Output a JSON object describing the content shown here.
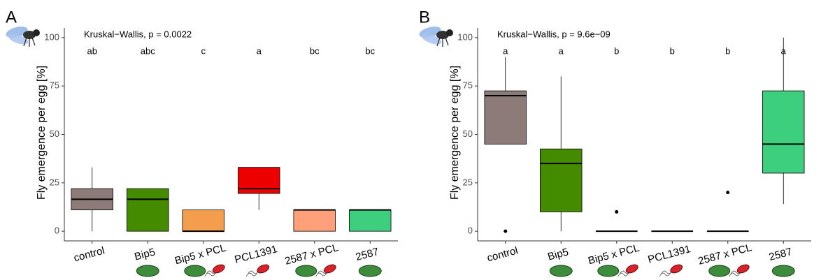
{
  "chart_data": [
    {
      "type": "box",
      "panel": "A",
      "ylabel": "Fly emergence per egg [%]",
      "annotation": "Kruskal−Wallis, p = 0.0022",
      "categories": [
        "control",
        "Bip5",
        "Bip5 x PCL",
        "PCL1391",
        "2587 x PCL",
        "2587"
      ],
      "group_letters": [
        "ab",
        "abc",
        "c",
        "a",
        "bc",
        "bc"
      ],
      "colors": [
        "#8c7b79",
        "#458b00",
        "#f29e4c",
        "#ee0000",
        "#ffa07a",
        "#3ecf7e"
      ],
      "boxes": [
        {
          "whisker_low": 0,
          "q1": 11,
          "median": 16.5,
          "q3": 22,
          "whisker_high": 33,
          "outliers": []
        },
        {
          "whisker_low": 0,
          "q1": 0,
          "median": 16.5,
          "q3": 22,
          "whisker_high": 22,
          "outliers": []
        },
        {
          "whisker_low": 0,
          "q1": 0,
          "median": 0,
          "q3": 11,
          "whisker_high": 11,
          "outliers": []
        },
        {
          "whisker_low": 11,
          "q1": 19.5,
          "median": 22,
          "q3": 33,
          "whisker_high": 33,
          "outliers": []
        },
        {
          "whisker_low": 0,
          "q1": 0,
          "median": 11,
          "q3": 11,
          "whisker_high": 11,
          "outliers": []
        },
        {
          "whisker_low": 0,
          "q1": 0,
          "median": 11,
          "q3": 11,
          "whisker_high": 11,
          "outliers": []
        }
      ],
      "ylim": [
        -5,
        105
      ],
      "yticks": [
        0,
        25,
        50,
        75,
        100
      ]
    },
    {
      "type": "box",
      "panel": "B",
      "ylabel": "Fly emergence per egg [%]",
      "annotation": "Kruskal−Wallis, p = 9.6e−09",
      "categories": [
        "control",
        "Bip5",
        "Bip5 x PCL",
        "PCL1391",
        "2587 x PCL",
        "2587"
      ],
      "group_letters": [
        "a",
        "a",
        "b",
        "b",
        "b",
        "a"
      ],
      "colors": [
        "#8c7b79",
        "#458b00",
        "#f29e4c",
        "#ee0000",
        "#ffa07a",
        "#3ecf7e"
      ],
      "boxes": [
        {
          "whisker_low": 45,
          "q1": 45,
          "median": 70,
          "q3": 72.5,
          "whisker_high": 90,
          "outliers": [
            0
          ]
        },
        {
          "whisker_low": 0,
          "q1": 10,
          "median": 35,
          "q3": 42.5,
          "whisker_high": 80,
          "outliers": []
        },
        {
          "whisker_low": 0,
          "q1": 0,
          "median": 0,
          "q3": 0,
          "whisker_high": 0,
          "outliers": [
            10
          ]
        },
        {
          "whisker_low": 0,
          "q1": 0,
          "median": 0,
          "q3": 0,
          "whisker_high": 0,
          "outliers": []
        },
        {
          "whisker_low": 0,
          "q1": 0,
          "median": 0,
          "q3": 0,
          "whisker_high": 0,
          "outliers": [
            20
          ]
        },
        {
          "whisker_low": 14,
          "q1": 30,
          "median": 45,
          "q3": 72.5,
          "whisker_high": 100,
          "outliers": []
        }
      ],
      "ylim": [
        -5,
        105
      ],
      "yticks": [
        0,
        25,
        50,
        75,
        100
      ]
    }
  ]
}
